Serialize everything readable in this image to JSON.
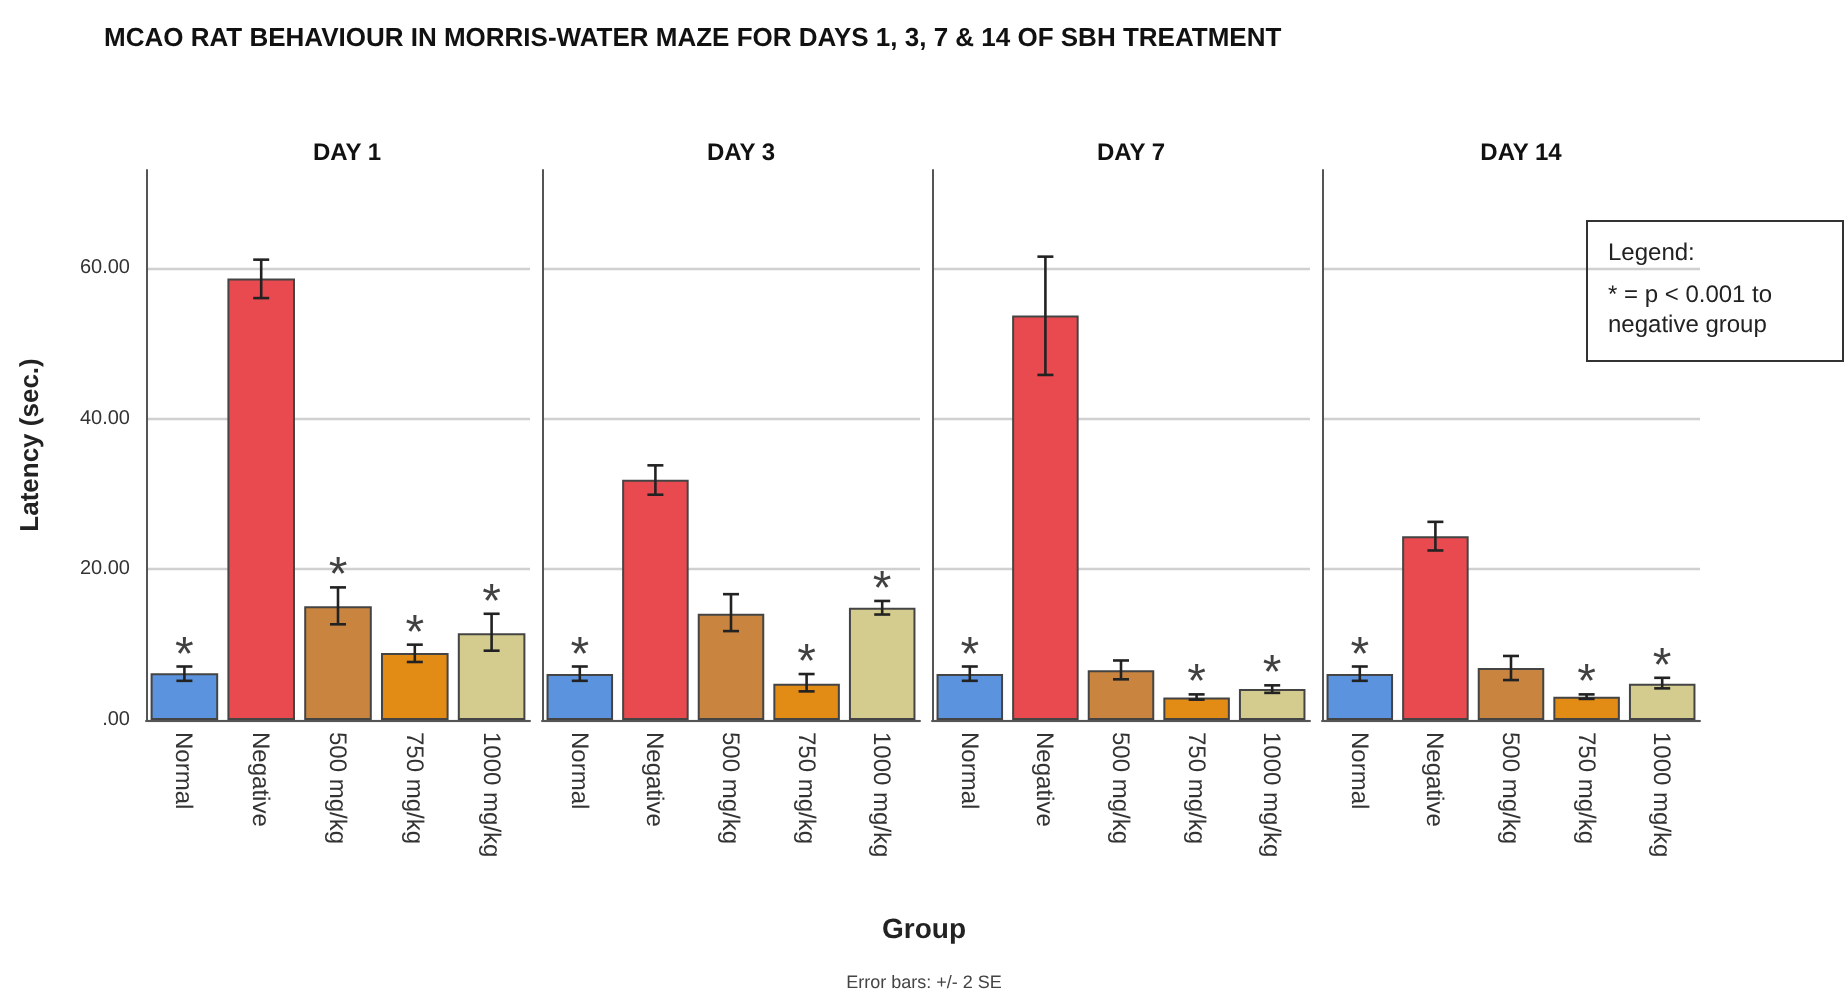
{
  "chart_data": [
    {
      "type": "bar",
      "title": "DAY 1",
      "ylabel": "Latency (sec.)",
      "categories": [
        "Normal",
        "Negative",
        "500 mg/kg",
        "750 mg/kg",
        "1000 mg/kg"
      ],
      "values": [
        6.2,
        58.6,
        15.1,
        8.9,
        11.5
      ],
      "colors": [
        "#5b93de",
        "#e84a4f",
        "#c9853f",
        "#e28b15",
        "#d3cc8e"
      ],
      "errors": [
        [
          5.2,
          7.1
        ],
        [
          56.0,
          61.1
        ],
        [
          12.7,
          17.6
        ],
        [
          7.7,
          10.0
        ],
        [
          9.2,
          14.1
        ]
      ],
      "ylim": [
        0,
        73
      ],
      "yticks": [
        {
          "value": 0,
          "label": ".00"
        },
        {
          "value": 20,
          "label": "20.00"
        },
        {
          "value": 40,
          "label": "40.00"
        },
        {
          "value": 60,
          "label": "60.00"
        }
      ],
      "grid": "y",
      "annotations": [
        "MCAO RAT BEHAVIOUR IN MORRIS-WATER MAZE FOR DAYS 1, 3, 7 & 14 OF SBH TREATMENT",
        "Error bars: +/- 2 SE",
        "Group",
        {
          "text": "*",
          "x": "Normal",
          "y": 6.2
        },
        {
          "text": "*",
          "x": "500 mg/kg",
          "y": 15.1
        },
        {
          "text": "*",
          "x": "750 mg/kg",
          "y": 8.9
        },
        {
          "text": "*",
          "x": "1000 mg/kg",
          "y": 11.5
        }
      ]
    },
    {
      "type": "bar",
      "title": "DAY 3",
      "categories": [
        "Normal",
        "Negative",
        "500 mg/kg",
        "750 mg/kg",
        "1000 mg/kg"
      ],
      "values": [
        6.1,
        31.9,
        14.1,
        4.8,
        14.9
      ],
      "colors": [
        "#5b93de",
        "#e84a4f",
        "#c9853f",
        "#e28b15",
        "#d3cc8e"
      ],
      "errors": [
        [
          5.2,
          7.1
        ],
        [
          29.9,
          33.8
        ],
        [
          11.8,
          16.7
        ],
        [
          3.8,
          6.1
        ],
        [
          14.0,
          15.8
        ]
      ],
      "ylim": [
        0,
        73
      ],
      "yticks": [
        0,
        20,
        40,
        60
      ],
      "grid": "y",
      "tick_labels": "x",
      "annotations": [
        {
          "text": "*",
          "x": "Normal",
          "y": 6.1
        },
        {
          "text": "*",
          "x": "750 mg/kg",
          "y": 4.8
        },
        {
          "text": "*",
          "x": "1000 mg/kg",
          "y": 14.9
        }
      ]
    },
    {
      "type": "bar",
      "title": "DAY 7",
      "categories": [
        "Normal",
        "Negative",
        "500 mg/kg",
        "750 mg/kg",
        "1000 mg/kg"
      ],
      "values": [
        6.1,
        53.7,
        6.6,
        3.0,
        4.1
      ],
      "colors": [
        "#5b93de",
        "#e84a4f",
        "#c9853f",
        "#e28b15",
        "#d3cc8e"
      ],
      "errors": [
        [
          5.2,
          7.1
        ],
        [
          45.8,
          61.5
        ],
        [
          5.4,
          7.9
        ],
        [
          2.7,
          3.4
        ],
        [
          3.6,
          4.6
        ]
      ],
      "ylim": [
        0,
        73
      ],
      "yticks": [
        0,
        20,
        40,
        60
      ],
      "grid": "y",
      "tick_labels": "x",
      "annotations": [
        {
          "text": "*",
          "x": "Normal",
          "y": 6.1
        },
        {
          "text": "*",
          "x": "750 mg/kg",
          "y": 3.0
        },
        {
          "text": "*",
          "x": "1000 mg/kg",
          "y": 4.1
        }
      ]
    },
    {
      "type": "bar",
      "title": "DAY 14",
      "categories": [
        "Normal",
        "Negative",
        "500 mg/kg",
        "750 mg/kg",
        "1000 mg/kg"
      ],
      "values": [
        6.1,
        24.4,
        6.9,
        3.1,
        4.8
      ],
      "colors": [
        "#5b93de",
        "#e84a4f",
        "#c9853f",
        "#e28b15",
        "#d3cc8e"
      ],
      "errors": [
        [
          5.2,
          7.1
        ],
        [
          22.5,
          26.3
        ],
        [
          5.3,
          8.5
        ],
        [
          2.8,
          3.4
        ],
        [
          4.2,
          5.6
        ]
      ],
      "ylim": [
        0,
        73
      ],
      "yticks": [
        0,
        20,
        40,
        60
      ],
      "grid": "y",
      "tick_labels": "x",
      "annotations": [
        "Legend:",
        "* = p < 0.001 to negative group",
        {
          "text": "*",
          "x": "Normal",
          "y": 6.1
        },
        {
          "text": "*",
          "x": "750 mg/kg",
          "y": 3.1
        },
        {
          "text": "*",
          "x": "1000 mg/kg",
          "y": 4.8
        }
      ]
    }
  ]
}
